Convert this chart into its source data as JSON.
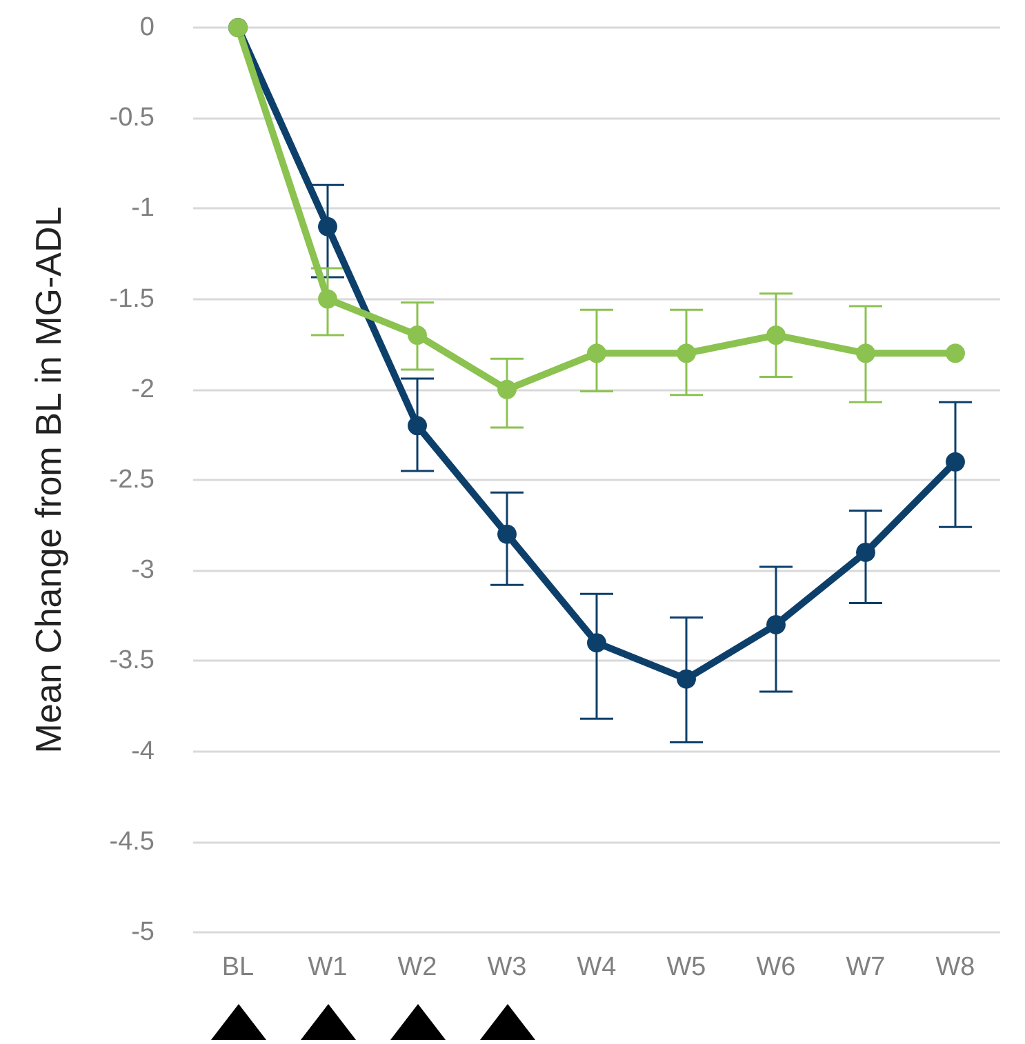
{
  "chart_data": {
    "type": "line",
    "ylabel": "Mean Change from BL in MG-ADL",
    "categories": [
      "BL",
      "W1",
      "W2",
      "W3",
      "W4",
      "W5",
      "W6",
      "W7",
      "W8"
    ],
    "ylim": [
      -5,
      0
    ],
    "yticks": [
      -5,
      -4.5,
      -4,
      -3.5,
      -3,
      -2.5,
      -2,
      -1.5,
      -1,
      -0.5,
      0
    ],
    "grid": "y",
    "marker": "circle",
    "line_style": "solid",
    "series": [
      {
        "color": "#0d3f6b",
        "values": [
          0,
          -1.1,
          -2.2,
          -2.8,
          -3.4,
          -3.6,
          -3.3,
          -2.9,
          -2.4
        ],
        "errors": [
          null,
          [
            -1.38,
            -0.87
          ],
          [
            -2.45,
            -1.94
          ],
          [
            -3.08,
            -2.57
          ],
          [
            -3.82,
            -3.13
          ],
          [
            -3.95,
            -3.26
          ],
          [
            -3.67,
            -2.98
          ],
          [
            -3.18,
            -2.67
          ],
          [
            -2.76,
            -2.07
          ]
        ]
      },
      {
        "color": "#8bc250",
        "values": [
          0,
          -1.5,
          -1.7,
          -2.0,
          -1.8,
          -1.8,
          -1.7,
          -1.8,
          -1.8
        ],
        "errors": [
          null,
          [
            -1.7,
            -1.33
          ],
          [
            -1.89,
            -1.52
          ],
          [
            -2.21,
            -1.83
          ],
          [
            -2.01,
            -1.56
          ],
          [
            -2.03,
            -1.56
          ],
          [
            -1.93,
            -1.47
          ],
          [
            -2.07,
            -1.54
          ],
          null
        ]
      }
    ]
  }
}
